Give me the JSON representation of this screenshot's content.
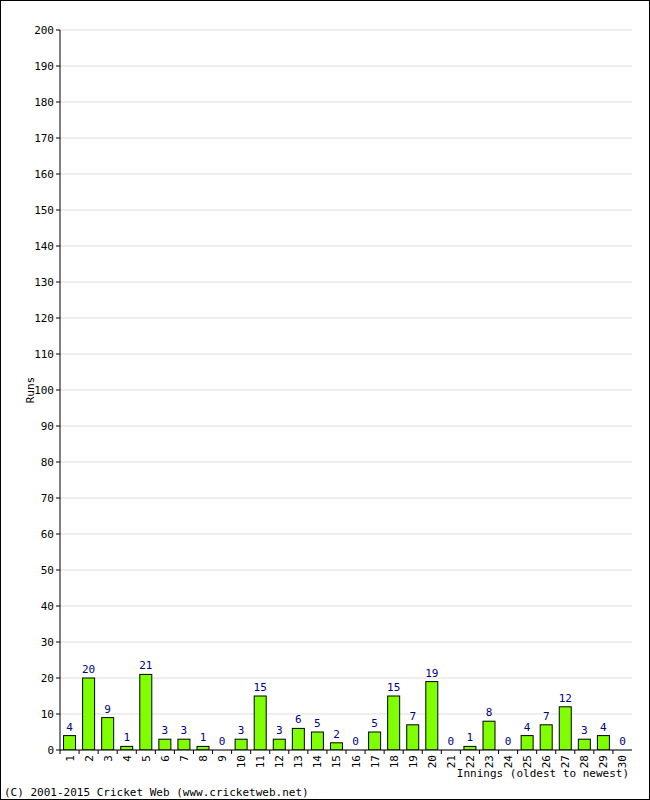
{
  "chart_data": {
    "type": "bar",
    "y_label": "Runs",
    "x_label": "Innings (oldest to newest)",
    "annotations": [
      "(C) 2001-2015 Cricket Web (www.cricketweb.net)"
    ],
    "categories": [
      "1",
      "2",
      "3",
      "4",
      "5",
      "6",
      "7",
      "8",
      "9",
      "10",
      "11",
      "12",
      "13",
      "14",
      "15",
      "16",
      "17",
      "18",
      "19",
      "20",
      "21",
      "22",
      "23",
      "24",
      "25",
      "26",
      "27",
      "28",
      "29",
      "30"
    ],
    "values": [
      4,
      20,
      9,
      1,
      21,
      3,
      3,
      1,
      0,
      3,
      15,
      3,
      6,
      5,
      2,
      0,
      5,
      15,
      7,
      19,
      0,
      1,
      8,
      0,
      4,
      7,
      12,
      3,
      4,
      0
    ],
    "color": "#80ff00",
    "ylim": [
      0,
      200
    ],
    "yticks": [
      0,
      10,
      20,
      30,
      40,
      50,
      60,
      70,
      80,
      90,
      100,
      110,
      120,
      130,
      140,
      150,
      160,
      170,
      180,
      190,
      200
    ],
    "grid": true,
    "data_labels": true
  }
}
